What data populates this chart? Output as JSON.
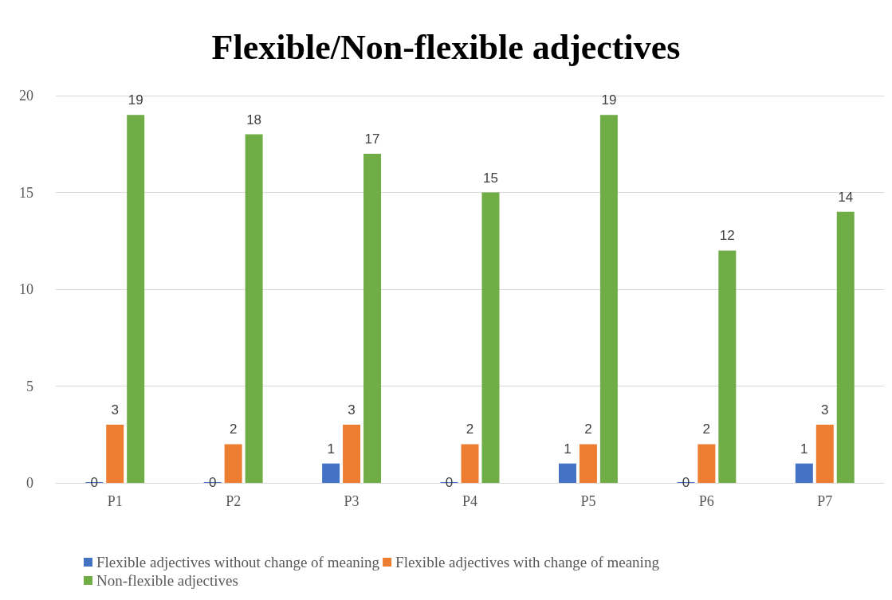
{
  "chart_data": {
    "type": "bar",
    "title": "Flexible/Non-flexible adjectives",
    "categories": [
      "P1",
      "P2",
      "P3",
      "P4",
      "P5",
      "P6",
      "P7"
    ],
    "series": [
      {
        "name": "Flexible adjectives without change of meaning",
        "color": "#4472c4",
        "values": [
          0,
          0,
          1,
          0,
          1,
          0,
          1
        ]
      },
      {
        "name": "Flexible adjectives with change of meaning",
        "color": "#ed7d31",
        "values": [
          3,
          2,
          3,
          2,
          2,
          2,
          3
        ]
      },
      {
        "name": "Non-flexible adjectives",
        "color": "#70ad47",
        "values": [
          19,
          18,
          17,
          15,
          19,
          12,
          14
        ]
      }
    ],
    "ylim": [
      0,
      20
    ],
    "yticks": [
      0,
      5,
      10,
      15,
      20
    ],
    "grid": "y",
    "legend": "bottom",
    "data_labels": true
  }
}
